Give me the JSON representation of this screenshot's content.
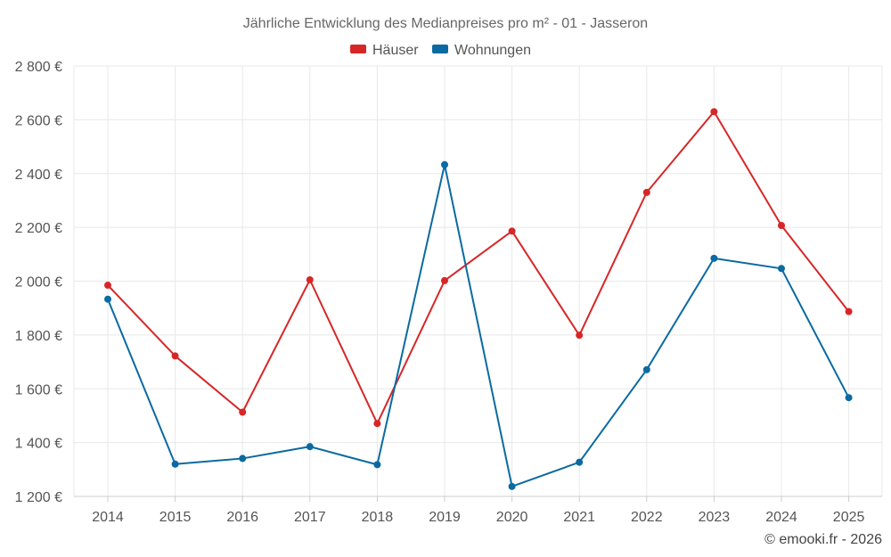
{
  "chart_data": {
    "type": "line",
    "title": "Jährliche Entwicklung des Medianpreises pro m² - 01 - Jasseron",
    "categories": [
      "2014",
      "2015",
      "2016",
      "2017",
      "2018",
      "2019",
      "2020",
      "2021",
      "2022",
      "2023",
      "2024",
      "2025"
    ],
    "series": [
      {
        "name": "Häuser",
        "color": "#d62728",
        "values": [
          1985,
          1722,
          1513,
          2005,
          1471,
          2002,
          2186,
          1799,
          2330,
          2630,
          2207,
          1887
        ]
      },
      {
        "name": "Wohnungen",
        "color": "#0a6aa1",
        "values": [
          1933,
          1320,
          1341,
          1385,
          1318,
          2433,
          1237,
          1327,
          1671,
          2085,
          2047,
          1567
        ]
      }
    ],
    "ylim": [
      1200,
      2800
    ],
    "yticks": [
      1200,
      1400,
      1600,
      1800,
      2000,
      2200,
      2400,
      2600,
      2800
    ],
    "ytick_labels": [
      "1 200 €",
      "1 400 €",
      "1 600 €",
      "1 800 €",
      "2 000 €",
      "2 200 €",
      "2 400 €",
      "2 600 €",
      "2 800 €"
    ],
    "legend_position": "top-center",
    "grid": true,
    "credit": "© emooki.fr - 2026"
  }
}
